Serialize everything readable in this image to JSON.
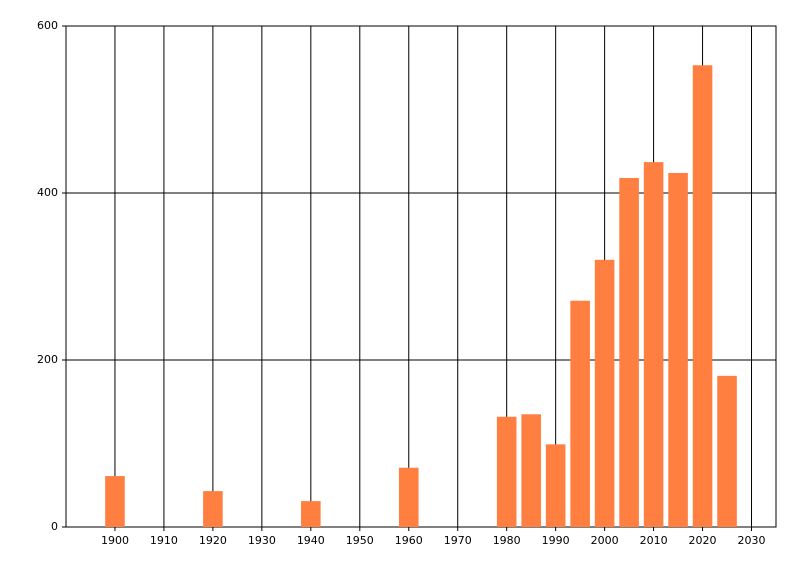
{
  "chart_data": {
    "type": "bar",
    "x": [
      1900,
      1920,
      1940,
      1960,
      1980,
      1985,
      1990,
      1995,
      2000,
      2005,
      2010,
      2015,
      2020,
      2025
    ],
    "values": [
      61,
      43,
      31,
      71,
      132,
      135,
      99,
      271,
      320,
      418,
      437,
      424,
      553,
      181
    ],
    "color": "#ff7f40",
    "bar_width": 4,
    "xlim": [
      1890,
      2035
    ],
    "xticks": [
      1900,
      1910,
      1920,
      1930,
      1940,
      1950,
      1960,
      1970,
      1980,
      1990,
      2000,
      2010,
      2020,
      2030
    ],
    "ylim": [
      0,
      600
    ],
    "yticks": [
      0,
      200,
      400,
      600
    ],
    "grid": true
  }
}
